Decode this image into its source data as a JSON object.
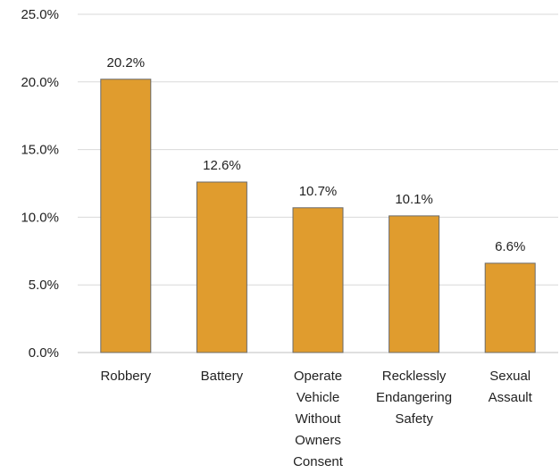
{
  "chart_data": {
    "type": "bar",
    "title": "",
    "xlabel": "",
    "ylabel": "",
    "categories": [
      [
        "Robbery"
      ],
      [
        "Battery"
      ],
      [
        "Operate",
        "Vehicle",
        "Without",
        "Owners",
        "Consent"
      ],
      [
        "Recklessly",
        "Endangering",
        "Safety"
      ],
      [
        "Sexual",
        "Assault"
      ]
    ],
    "values": [
      20.2,
      12.6,
      10.7,
      10.1,
      6.6
    ],
    "data_labels": [
      "20.2%",
      "12.6%",
      "10.7%",
      "10.1%",
      "6.6%"
    ],
    "ylim": [
      0,
      25
    ],
    "yticks": [
      0,
      5,
      10,
      15,
      20,
      25
    ],
    "ytick_labels": [
      "0.0%",
      "5.0%",
      "10.0%",
      "15.0%",
      "20.0%",
      "25.0%"
    ],
    "grid": true,
    "legend": "none",
    "colors": {
      "bar_fill": "#E09C2E",
      "bar_stroke": "#6b6b6b",
      "grid": "#d9d9d9",
      "axis": "#bfbfbf"
    }
  }
}
